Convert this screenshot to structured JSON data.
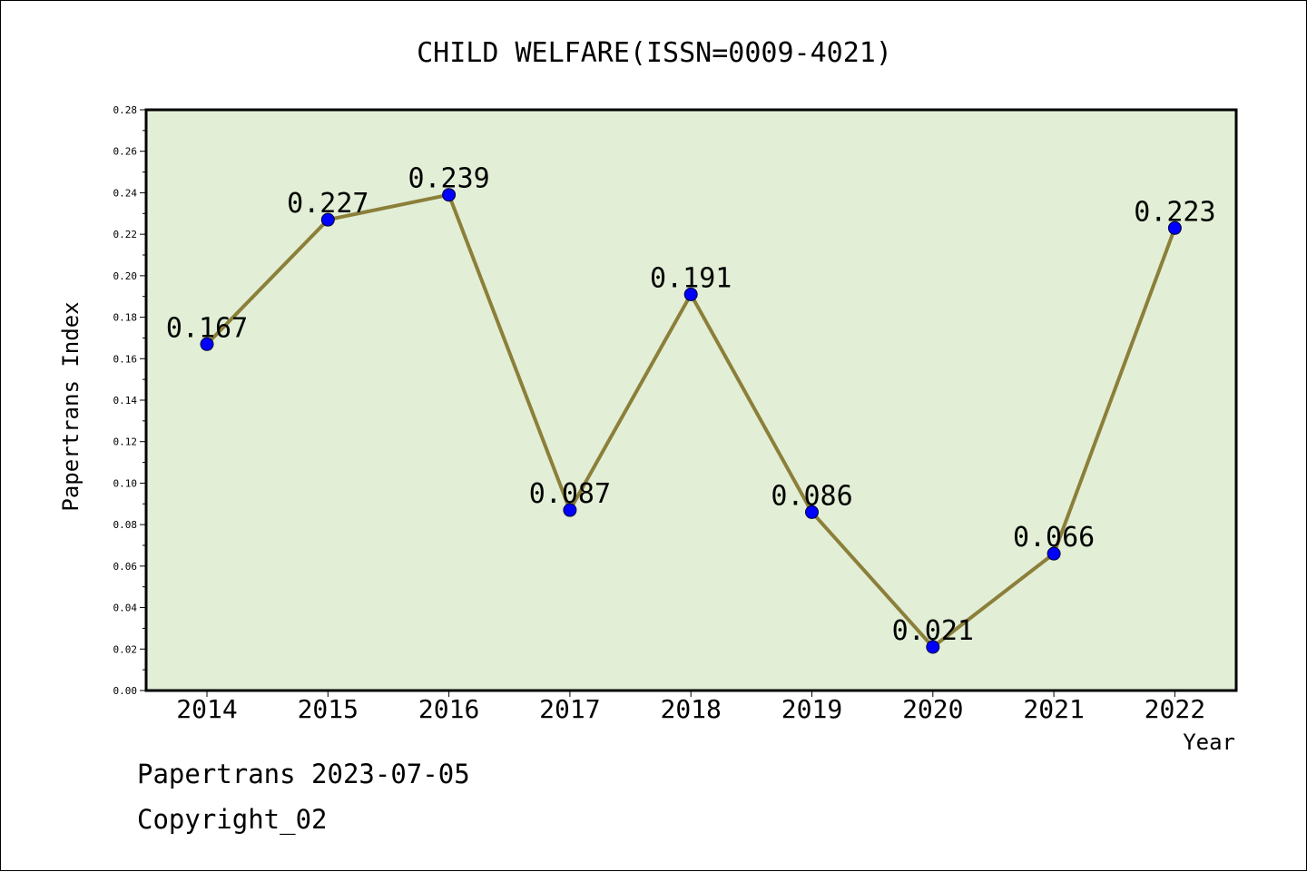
{
  "chart_data": {
    "type": "line",
    "title": "CHILD WELFARE(ISSN=0009-4021)",
    "xlabel": "Year",
    "ylabel": "Papertrans Index",
    "categories": [
      "2014",
      "2015",
      "2016",
      "2017",
      "2018",
      "2019",
      "2020",
      "2021",
      "2022"
    ],
    "series": [
      {
        "values": [
          0.167,
          0.227,
          0.239,
          0.087,
          0.191,
          0.086,
          0.021,
          0.066,
          0.223
        ]
      }
    ],
    "data_labels": [
      "0.167",
      "0.227",
      "0.239",
      "0.087",
      "0.191",
      "0.086",
      "0.021",
      "0.066",
      "0.223"
    ],
    "ylim": [
      0,
      0.28
    ],
    "yticks": [
      "0.00",
      "0.02",
      "0.04",
      "0.06",
      "0.08",
      "0.10",
      "0.12",
      "0.14",
      "0.16",
      "0.18",
      "0.20",
      "0.22",
      "0.24",
      "0.26",
      "0.28"
    ],
    "grid": false,
    "legend": "none",
    "colors": {
      "plot_background": "#e2efd6",
      "line": "#8b7f3a",
      "marker": "#0000ff"
    }
  },
  "footer": {
    "date_line": "Papertrans 2023-07-05",
    "copyright": "Copyright_02"
  }
}
